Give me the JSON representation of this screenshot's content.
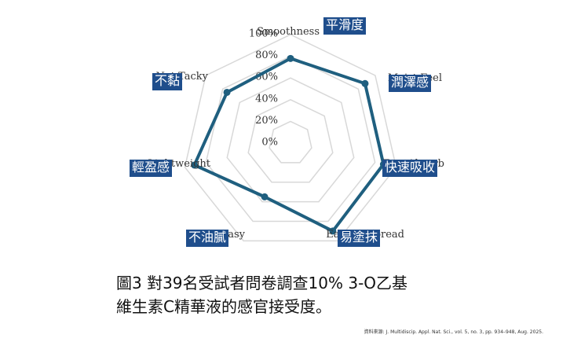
{
  "chart_data": {
    "type": "radar",
    "title": "",
    "axes": [
      {
        "en": "Smoothness",
        "zh": "平滑度",
        "value": 78
      },
      {
        "en": "Moist Feel",
        "zh": "潤澤感",
        "value": 88
      },
      {
        "en": "Fast Absorb",
        "zh": "快速吸收",
        "value": 88
      },
      {
        "en": "Easy to Spread",
        "zh": "易塗抹",
        "value": 90
      },
      {
        "en": "Not Greasy",
        "zh": "不油膩",
        "value": 55
      },
      {
        "en": "Lightweight",
        "zh": "輕盈感",
        "value": 91
      },
      {
        "en": "Not Tacky",
        "zh": "不黏",
        "value": 75
      }
    ],
    "ticks": [
      "0%",
      "20%",
      "40%",
      "60%",
      "80%",
      "100%"
    ],
    "rmax": 100,
    "grid": true,
    "legend": "none",
    "colors": {
      "series": "#1f5f7f",
      "grid": "#d8d8d8",
      "label_box": "#1f4e8c"
    }
  },
  "caption": {
    "line1": "圖3 對39名受試者問卷調查10% 3-O乙基",
    "line2": "維生素C精華液的感官接受度。"
  },
  "source": "資料來源: J. Multidiscip. Appl. Nat. Sci., vol. 5, no. 3, pp. 934–948, Aug. 2025."
}
